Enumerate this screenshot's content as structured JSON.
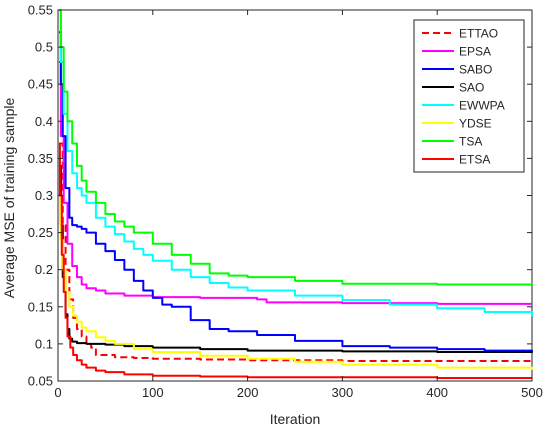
{
  "chart_data": {
    "type": "line",
    "title": "",
    "xlabel": "Iteration",
    "ylabel": "Average MSE of training sample",
    "xlim": [
      0,
      500
    ],
    "ylim": [
      0.05,
      0.55
    ],
    "xticks": [
      0,
      100,
      200,
      300,
      400,
      500
    ],
    "yticks": [
      0.05,
      0.1,
      0.15,
      0.2,
      0.25,
      0.3,
      0.35,
      0.4,
      0.45,
      0.5,
      0.55
    ],
    "xtick_labels": [
      "0",
      "100",
      "200",
      "300",
      "400",
      "500"
    ],
    "ytick_labels": [
      "0.05",
      "0.1",
      "0.15",
      "0.2",
      "0.25",
      "0.3",
      "0.35",
      "0.4",
      "0.45",
      "0.5",
      "0.55"
    ],
    "grid": false,
    "legend_position": "top-right",
    "series": [
      {
        "name": "ETTAO",
        "color": "#ff0000",
        "dash": true,
        "x": [
          1,
          5,
          8,
          12,
          16,
          20,
          25,
          30,
          35,
          40,
          60,
          80,
          100,
          150,
          200,
          250,
          300,
          400,
          500
        ],
        "y": [
          0.37,
          0.26,
          0.2,
          0.16,
          0.135,
          0.12,
          0.11,
          0.1,
          0.095,
          0.085,
          0.082,
          0.081,
          0.08,
          0.079,
          0.078,
          0.078,
          0.077,
          0.077,
          0.077
        ]
      },
      {
        "name": "EPSA",
        "color": "#ff00ff",
        "dash": false,
        "x": [
          1,
          3,
          6,
          10,
          15,
          20,
          25,
          30,
          40,
          50,
          70,
          100,
          150,
          200,
          210,
          220,
          300,
          400,
          500
        ],
        "y": [
          0.48,
          0.38,
          0.29,
          0.235,
          0.205,
          0.19,
          0.18,
          0.175,
          0.172,
          0.168,
          0.165,
          0.163,
          0.162,
          0.162,
          0.16,
          0.156,
          0.155,
          0.154,
          0.154
        ]
      },
      {
        "name": "SABO",
        "color": "#0000ff",
        "dash": false,
        "x": [
          1,
          3,
          5,
          8,
          12,
          15,
          20,
          25,
          30,
          40,
          50,
          60,
          70,
          80,
          90,
          100,
          110,
          120,
          140,
          160,
          180,
          200,
          210,
          250,
          300,
          350,
          400,
          450,
          500
        ],
        "y": [
          0.52,
          0.45,
          0.38,
          0.31,
          0.27,
          0.26,
          0.258,
          0.255,
          0.25,
          0.235,
          0.225,
          0.213,
          0.2,
          0.185,
          0.172,
          0.162,
          0.153,
          0.15,
          0.132,
          0.12,
          0.117,
          0.117,
          0.112,
          0.104,
          0.097,
          0.095,
          0.093,
          0.091,
          0.09
        ]
      },
      {
        "name": "SAO",
        "color": "#000000",
        "dash": false,
        "x": [
          1,
          3,
          5,
          8,
          10,
          12,
          15,
          20,
          30,
          50,
          70,
          100,
          150,
          200,
          300,
          400,
          500
        ],
        "y": [
          0.34,
          0.26,
          0.19,
          0.14,
          0.12,
          0.107,
          0.103,
          0.101,
          0.1,
          0.099,
          0.097,
          0.095,
          0.093,
          0.091,
          0.09,
          0.089,
          0.088
        ]
      },
      {
        "name": "EWWPA",
        "color": "#00ffff",
        "dash": false,
        "x": [
          1,
          3,
          6,
          10,
          15,
          20,
          25,
          30,
          40,
          50,
          60,
          70,
          80,
          90,
          100,
          120,
          140,
          160,
          180,
          200,
          250,
          300,
          350,
          400,
          450,
          500
        ],
        "y": [
          0.55,
          0.48,
          0.41,
          0.36,
          0.33,
          0.31,
          0.3,
          0.29,
          0.27,
          0.258,
          0.248,
          0.238,
          0.228,
          0.22,
          0.212,
          0.2,
          0.19,
          0.182,
          0.176,
          0.172,
          0.165,
          0.159,
          0.153,
          0.148,
          0.143,
          0.137
        ]
      },
      {
        "name": "YDSE",
        "color": "#ffff00",
        "dash": false,
        "x": [
          1,
          3,
          5,
          8,
          12,
          16,
          20,
          25,
          30,
          40,
          50,
          60,
          80,
          100,
          150,
          200,
          250,
          300,
          400,
          500
        ],
        "y": [
          0.3,
          0.24,
          0.2,
          0.17,
          0.15,
          0.138,
          0.13,
          0.122,
          0.117,
          0.109,
          0.104,
          0.1,
          0.093,
          0.089,
          0.084,
          0.08,
          0.076,
          0.072,
          0.068,
          0.065
        ]
      },
      {
        "name": "TSA",
        "color": "#00ff00",
        "dash": false,
        "x": [
          1,
          3,
          6,
          10,
          15,
          20,
          25,
          30,
          40,
          50,
          60,
          70,
          80,
          100,
          120,
          140,
          160,
          180,
          200,
          250,
          300,
          400,
          500
        ],
        "y": [
          0.55,
          0.5,
          0.44,
          0.4,
          0.37,
          0.34,
          0.32,
          0.305,
          0.29,
          0.275,
          0.265,
          0.258,
          0.25,
          0.235,
          0.22,
          0.208,
          0.195,
          0.192,
          0.19,
          0.185,
          0.181,
          0.18,
          0.179
        ]
      },
      {
        "name": "ETSA",
        "color": "#ff0000",
        "dash": false,
        "x": [
          1,
          2,
          4,
          6,
          8,
          10,
          13,
          16,
          20,
          25,
          30,
          40,
          50,
          70,
          100,
          150,
          200,
          300,
          400,
          500
        ],
        "y": [
          0.37,
          0.3,
          0.22,
          0.17,
          0.135,
          0.11,
          0.095,
          0.085,
          0.078,
          0.072,
          0.068,
          0.064,
          0.062,
          0.059,
          0.057,
          0.056,
          0.055,
          0.055,
          0.054,
          0.054
        ]
      }
    ]
  }
}
